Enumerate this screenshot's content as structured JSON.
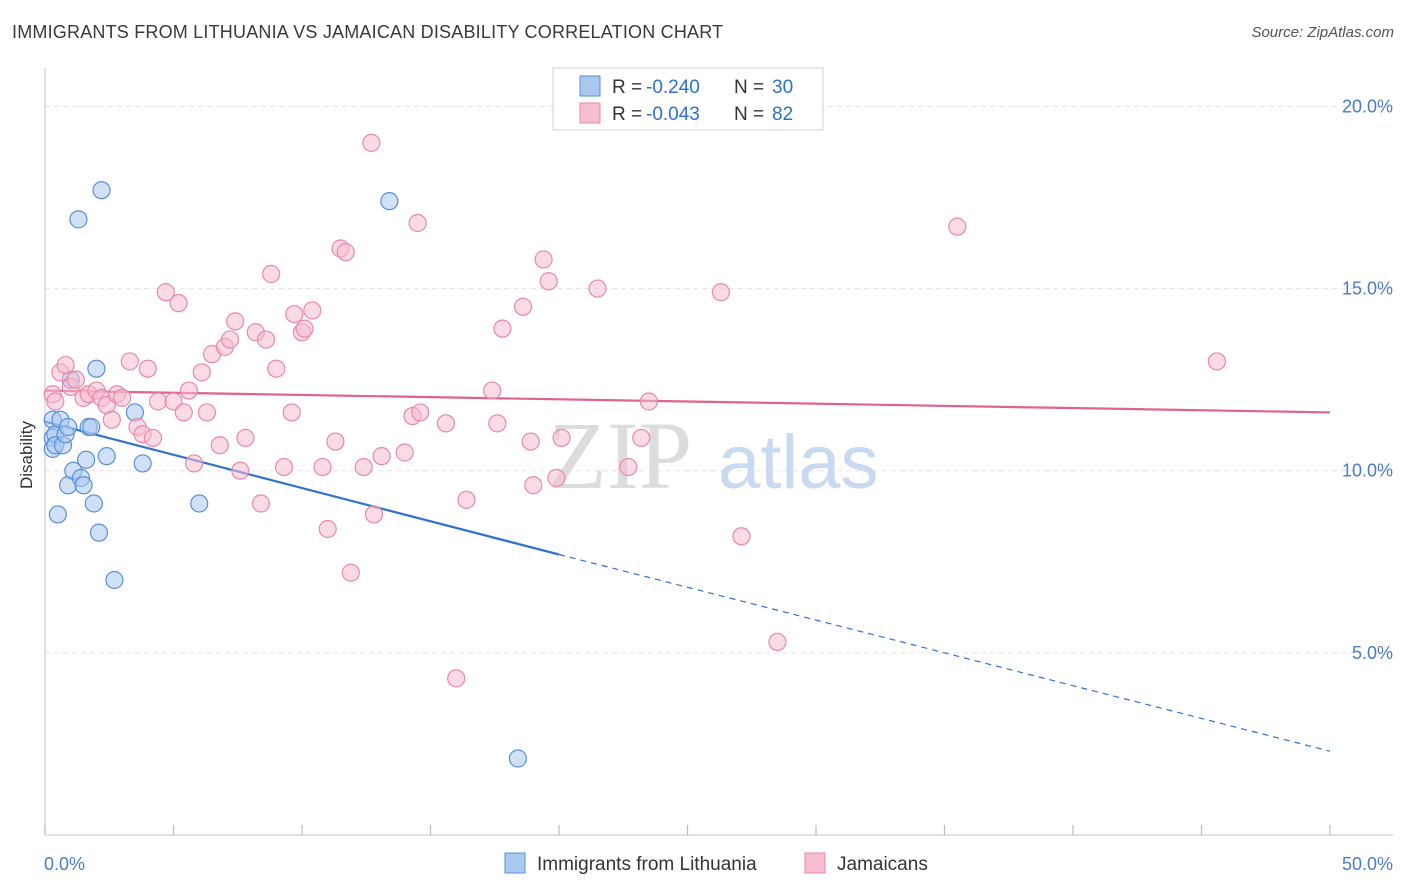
{
  "title": "IMMIGRANTS FROM LITHUANIA VS JAMAICAN DISABILITY CORRELATION CHART",
  "source": "Source: ZipAtlas.com",
  "watermark": {
    "zip": "ZIP",
    "atlas": "atlas"
  },
  "colors": {
    "blue_fill": "#a9c8f0",
    "blue_stroke": "#5a8fd8",
    "blue_line": "#2f72d0",
    "pink_fill": "#f6bcd0",
    "pink_stroke": "#e889a9",
    "pink_line": "#e0628f",
    "grid": "#e3e3e3",
    "tick_label": "#4a7cc8"
  },
  "legend": {
    "rows": [
      {
        "r_label": "R = ",
        "r_value": "-0.240",
        "n_label": "N = ",
        "n_value": "30",
        "color": "blue"
      },
      {
        "r_label": "R = ",
        "r_value": "-0.043",
        "n_label": "N = ",
        "n_value": "82",
        "color": "pink"
      }
    ]
  },
  "bottom_legend": [
    "Immigrants from Lithuania",
    "Jamaicans"
  ],
  "chart_data": {
    "type": "scatter",
    "title": "IMMIGRANTS FROM LITHUANIA VS JAMAICAN DISABILITY CORRELATION CHART",
    "ylabel": "Disability",
    "xlabel": "",
    "xlim": [
      0,
      50
    ],
    "ylim": [
      0,
      21
    ],
    "x_tick_labels": [
      "0.0%",
      "50.0%"
    ],
    "y_ticks": [
      5,
      10,
      15,
      20
    ],
    "y_tick_labels": [
      "5.0%",
      "10.0%",
      "15.0%",
      "20.0%"
    ],
    "grid": true,
    "legend_position": "top-center",
    "series": [
      {
        "name": "Immigrants from Lithuania",
        "color": "blue",
        "points": [
          [
            0.3,
            11.4
          ],
          [
            0.3,
            10.9
          ],
          [
            0.3,
            10.6
          ],
          [
            0.4,
            11.0
          ],
          [
            0.4,
            10.7
          ],
          [
            0.5,
            8.8
          ],
          [
            0.6,
            11.4
          ],
          [
            0.7,
            10.7
          ],
          [
            0.8,
            11.0
          ],
          [
            0.9,
            11.2
          ],
          [
            0.9,
            9.6
          ],
          [
            1.0,
            12.5
          ],
          [
            1.1,
            10.0
          ],
          [
            1.3,
            16.9
          ],
          [
            1.4,
            9.8
          ],
          [
            1.5,
            9.6
          ],
          [
            1.6,
            10.3
          ],
          [
            1.7,
            11.2
          ],
          [
            1.8,
            11.2
          ],
          [
            1.9,
            9.1
          ],
          [
            2.0,
            12.8
          ],
          [
            2.1,
            8.3
          ],
          [
            2.2,
            17.7
          ],
          [
            2.4,
            10.4
          ],
          [
            2.7,
            7.0
          ],
          [
            3.5,
            11.6
          ],
          [
            3.8,
            10.2
          ],
          [
            6.0,
            9.1
          ],
          [
            13.4,
            17.4
          ],
          [
            18.4,
            2.1
          ]
        ],
        "trend": {
          "x0": 0,
          "y0": 11.35,
          "x1": 20.0,
          "y1": 7.7,
          "dashed_to_x": 50,
          "dashed_to_y": 2.3
        }
      },
      {
        "name": "Jamaicans",
        "color": "pink",
        "points": [
          [
            0.3,
            12.1
          ],
          [
            0.4,
            11.9
          ],
          [
            0.6,
            12.7
          ],
          [
            0.8,
            12.9
          ],
          [
            1.0,
            12.3
          ],
          [
            1.2,
            12.5
          ],
          [
            1.5,
            12.0
          ],
          [
            1.7,
            12.1
          ],
          [
            2.0,
            12.2
          ],
          [
            2.2,
            12.0
          ],
          [
            2.4,
            11.8
          ],
          [
            2.6,
            11.4
          ],
          [
            2.8,
            12.1
          ],
          [
            3.0,
            12.0
          ],
          [
            3.3,
            13.0
          ],
          [
            3.6,
            11.2
          ],
          [
            3.8,
            11.0
          ],
          [
            4.0,
            12.8
          ],
          [
            4.2,
            10.9
          ],
          [
            4.4,
            11.9
          ],
          [
            4.7,
            14.9
          ],
          [
            5.0,
            11.9
          ],
          [
            5.2,
            14.6
          ],
          [
            5.4,
            11.6
          ],
          [
            5.6,
            12.2
          ],
          [
            5.8,
            10.2
          ],
          [
            6.1,
            12.7
          ],
          [
            6.3,
            11.6
          ],
          [
            6.5,
            13.2
          ],
          [
            6.8,
            10.7
          ],
          [
            7.0,
            13.4
          ],
          [
            7.2,
            13.6
          ],
          [
            7.4,
            14.1
          ],
          [
            7.6,
            10.0
          ],
          [
            7.8,
            10.9
          ],
          [
            8.2,
            13.8
          ],
          [
            8.4,
            9.1
          ],
          [
            8.6,
            13.6
          ],
          [
            8.8,
            15.4
          ],
          [
            9.0,
            12.8
          ],
          [
            9.3,
            10.1
          ],
          [
            9.6,
            11.6
          ],
          [
            9.7,
            14.3
          ],
          [
            10.0,
            13.8
          ],
          [
            10.1,
            13.9
          ],
          [
            10.4,
            14.4
          ],
          [
            10.8,
            10.1
          ],
          [
            11.0,
            8.4
          ],
          [
            11.3,
            10.8
          ],
          [
            11.5,
            16.1
          ],
          [
            11.7,
            16.0
          ],
          [
            11.9,
            7.2
          ],
          [
            12.4,
            10.1
          ],
          [
            12.8,
            8.8
          ],
          [
            12.7,
            19.0
          ],
          [
            13.1,
            10.4
          ],
          [
            14.0,
            10.5
          ],
          [
            14.3,
            11.5
          ],
          [
            14.5,
            16.8
          ],
          [
            14.6,
            11.6
          ],
          [
            15.6,
            11.3
          ],
          [
            16.0,
            4.3
          ],
          [
            16.4,
            9.2
          ],
          [
            17.4,
            12.2
          ],
          [
            17.6,
            11.3
          ],
          [
            17.8,
            13.9
          ],
          [
            18.6,
            14.5
          ],
          [
            18.9,
            10.8
          ],
          [
            19.0,
            9.6
          ],
          [
            19.4,
            15.8
          ],
          [
            19.6,
            15.2
          ],
          [
            19.9,
            9.8
          ],
          [
            20.1,
            10.9
          ],
          [
            21.5,
            15.0
          ],
          [
            22.7,
            10.1
          ],
          [
            23.2,
            10.9
          ],
          [
            23.5,
            11.9
          ],
          [
            26.3,
            14.9
          ],
          [
            27.1,
            8.2
          ],
          [
            28.5,
            5.3
          ],
          [
            35.5,
            16.7
          ],
          [
            45.6,
            13.0
          ]
        ],
        "trend": {
          "x0": 0,
          "y0": 12.2,
          "x1": 50,
          "y1": 11.6
        }
      }
    ]
  }
}
